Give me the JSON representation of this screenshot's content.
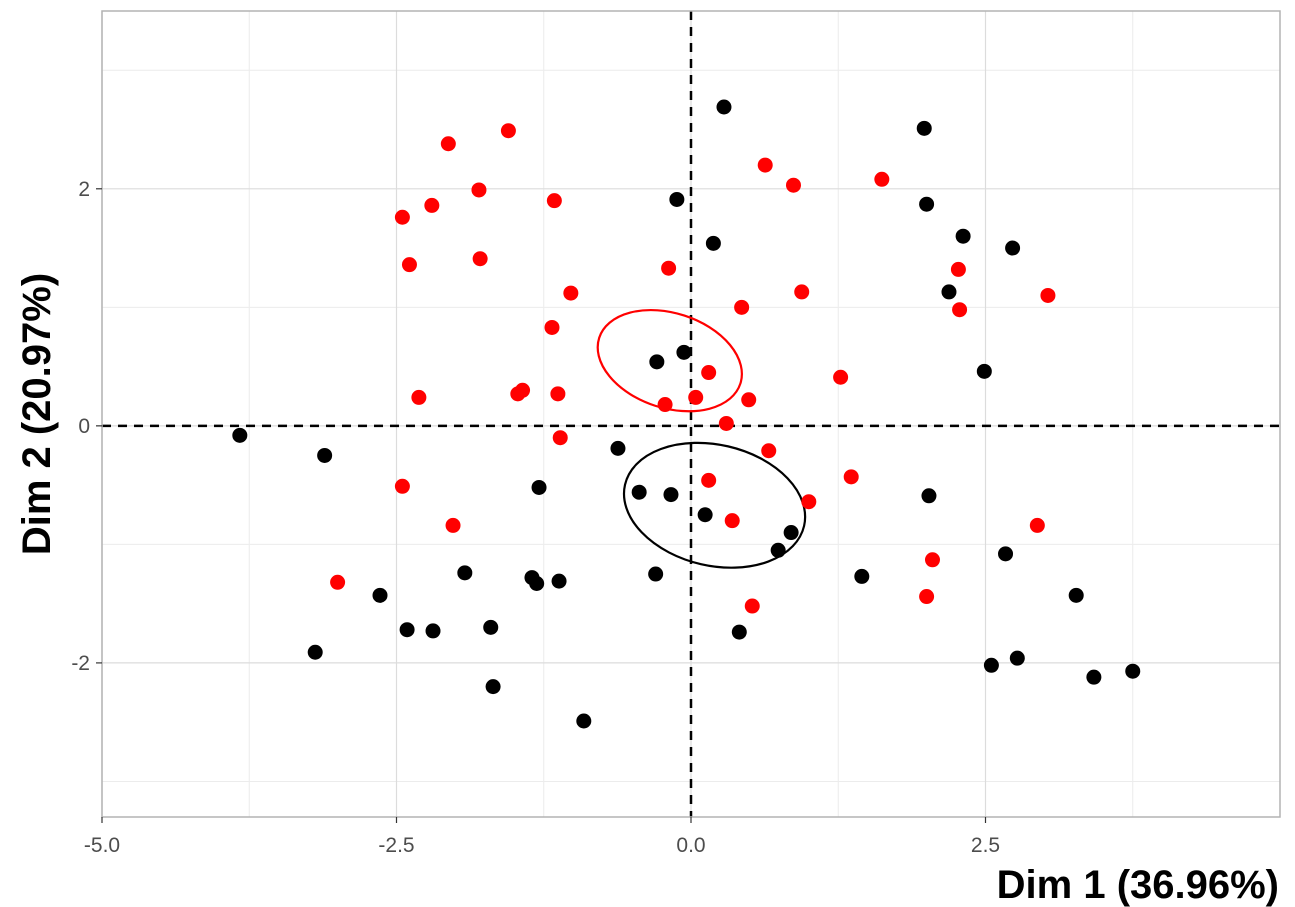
{
  "chart_data": {
    "type": "scatter",
    "xlabel": "Dim 1 (36.96%)",
    "ylabel": "Dim 2 (20.97%)",
    "xlim": [
      -5.0,
      5.0
    ],
    "ylim": [
      -3.3,
      3.5
    ],
    "x_ticks": [
      -5.0,
      -2.5,
      0.0,
      2.5
    ],
    "x_tick_labels": [
      "-5.0",
      "-2.5",
      "0.0",
      "2.5"
    ],
    "y_ticks": [
      -2,
      0,
      2
    ],
    "y_tick_labels": [
      "-2",
      "0",
      "2"
    ],
    "grid": true,
    "reference_lines": [
      {
        "axis": "x",
        "value": 0,
        "style": "dashed"
      },
      {
        "axis": "y",
        "value": 0,
        "style": "dashed"
      }
    ],
    "series": [
      {
        "color": "#000000",
        "points": [
          [
            0.28,
            2.69
          ],
          [
            1.98,
            2.51
          ],
          [
            -0.12,
            1.91
          ],
          [
            2.0,
            1.87
          ],
          [
            2.31,
            1.6
          ],
          [
            0.19,
            1.54
          ],
          [
            2.73,
            1.5
          ],
          [
            2.19,
            1.13
          ],
          [
            -0.06,
            0.62
          ],
          [
            -0.29,
            0.54
          ],
          [
            2.49,
            0.46
          ],
          [
            -3.83,
            -0.08
          ],
          [
            -3.11,
            -0.25
          ],
          [
            -0.62,
            -0.19
          ],
          [
            -1.29,
            -0.52
          ],
          [
            -0.44,
            -0.56
          ],
          [
            -0.17,
            -0.58
          ],
          [
            0.12,
            -0.75
          ],
          [
            2.02,
            -0.59
          ],
          [
            0.85,
            -0.9
          ],
          [
            0.74,
            -1.05
          ],
          [
            2.67,
            -1.08
          ],
          [
            -1.92,
            -1.24
          ],
          [
            -0.3,
            -1.25
          ],
          [
            1.45,
            -1.27
          ],
          [
            -1.35,
            -1.28
          ],
          [
            -1.31,
            -1.33
          ],
          [
            -1.12,
            -1.31
          ],
          [
            -2.64,
            -1.43
          ],
          [
            3.27,
            -1.43
          ],
          [
            -2.41,
            -1.72
          ],
          [
            -2.19,
            -1.73
          ],
          [
            -1.7,
            -1.7
          ],
          [
            0.41,
            -1.74
          ],
          [
            -3.19,
            -1.91
          ],
          [
            2.77,
            -1.96
          ],
          [
            2.55,
            -2.02
          ],
          [
            3.42,
            -2.12
          ],
          [
            3.75,
            -2.07
          ],
          [
            -1.68,
            -2.2
          ],
          [
            -0.91,
            -2.49
          ]
        ],
        "ellipse": {
          "cx": 0.2,
          "cy": -0.67,
          "rx": 0.78,
          "ry": 0.51,
          "angle_deg": -13
        }
      },
      {
        "color": "#ff0000",
        "points": [
          [
            -1.55,
            2.49
          ],
          [
            -2.06,
            2.38
          ],
          [
            0.63,
            2.2
          ],
          [
            1.62,
            2.08
          ],
          [
            0.87,
            2.03
          ],
          [
            -1.8,
            1.99
          ],
          [
            -1.16,
            1.9
          ],
          [
            -2.2,
            1.86
          ],
          [
            -2.45,
            1.76
          ],
          [
            -1.79,
            1.41
          ],
          [
            -2.39,
            1.36
          ],
          [
            -0.19,
            1.33
          ],
          [
            2.27,
            1.32
          ],
          [
            0.94,
            1.13
          ],
          [
            -1.02,
            1.12
          ],
          [
            3.03,
            1.1
          ],
          [
            0.43,
            1.0
          ],
          [
            2.28,
            0.98
          ],
          [
            -1.18,
            0.83
          ],
          [
            0.15,
            0.45
          ],
          [
            1.27,
            0.41
          ],
          [
            -1.43,
            0.3
          ],
          [
            -1.47,
            0.27
          ],
          [
            -1.13,
            0.27
          ],
          [
            -2.31,
            0.24
          ],
          [
            0.04,
            0.24
          ],
          [
            0.49,
            0.22
          ],
          [
            -0.22,
            0.18
          ],
          [
            0.3,
            0.02
          ],
          [
            -1.11,
            -0.1
          ],
          [
            0.66,
            -0.21
          ],
          [
            1.36,
            -0.43
          ],
          [
            0.15,
            -0.46
          ],
          [
            -2.45,
            -0.51
          ],
          [
            1.0,
            -0.64
          ],
          [
            0.35,
            -0.8
          ],
          [
            -2.02,
            -0.84
          ],
          [
            2.94,
            -0.84
          ],
          [
            2.05,
            -1.13
          ],
          [
            -3.0,
            -1.32
          ],
          [
            2.0,
            -1.44
          ],
          [
            0.52,
            -1.52
          ]
        ],
        "ellipse": {
          "cx": -0.18,
          "cy": 0.55,
          "rx": 0.63,
          "ry": 0.4,
          "angle_deg": -18
        }
      }
    ]
  }
}
